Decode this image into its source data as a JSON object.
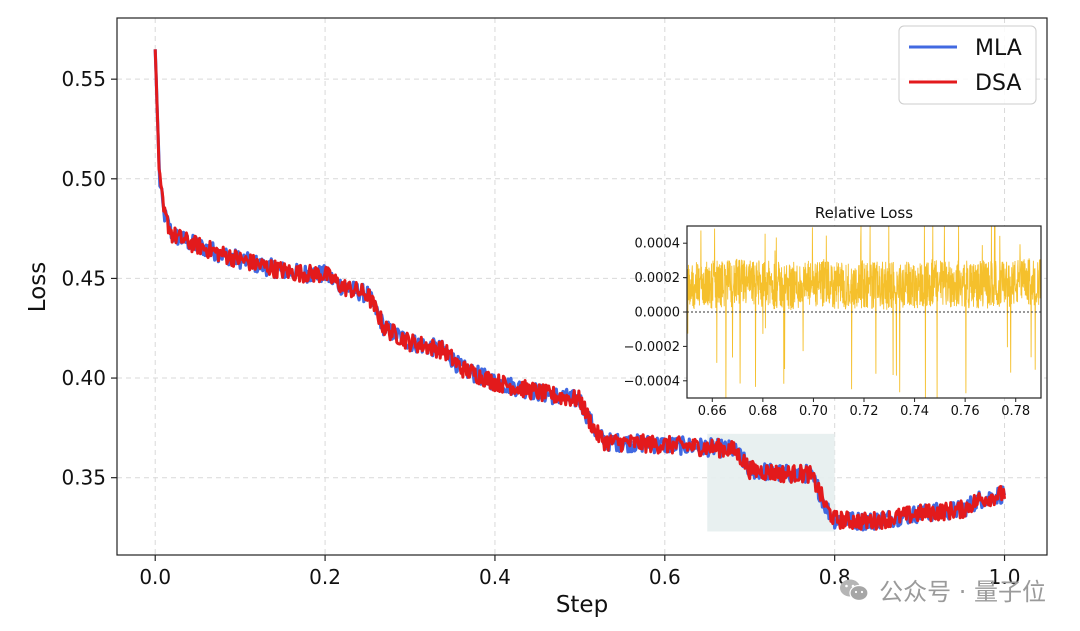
{
  "chart_data": [
    {
      "type": "line",
      "xlabel": "Step",
      "ylabel": "Loss",
      "xlim": [
        -0.045,
        1.05
      ],
      "ylim": [
        0.3112,
        0.5807
      ],
      "xticks": [
        0.0,
        0.2,
        0.4,
        0.6,
        0.8,
        1.0
      ],
      "xtick_labels": [
        "0.0",
        "0.2",
        "0.4",
        "0.6",
        "0.8",
        "1.0"
      ],
      "yticks": [
        0.35,
        0.4,
        0.45,
        0.5,
        0.55
      ],
      "ytick_labels": [
        "0.35",
        "0.40",
        "0.45",
        "0.50",
        "0.55"
      ],
      "grid": true,
      "legend_position": "top-right",
      "series": [
        {
          "name": "MLA",
          "color": "#4169e1",
          "x": [
            0.0,
            0.005,
            0.01,
            0.02,
            0.04,
            0.08,
            0.12,
            0.16,
            0.2,
            0.22,
            0.25,
            0.26,
            0.27,
            0.3,
            0.34,
            0.36,
            0.4,
            0.46,
            0.5,
            0.51,
            0.52,
            0.53,
            0.58,
            0.62,
            0.66,
            0.68,
            0.69,
            0.7,
            0.74,
            0.77,
            0.78,
            0.79,
            0.8,
            0.84,
            0.9,
            0.95,
            0.97,
            1.0
          ],
          "values": [
            0.565,
            0.5,
            0.483,
            0.472,
            0.468,
            0.462,
            0.457,
            0.453,
            0.452,
            0.446,
            0.442,
            0.434,
            0.425,
            0.418,
            0.414,
            0.405,
            0.398,
            0.392,
            0.389,
            0.38,
            0.372,
            0.368,
            0.367,
            0.366,
            0.365,
            0.364,
            0.36,
            0.354,
            0.352,
            0.352,
            0.345,
            0.335,
            0.329,
            0.328,
            0.332,
            0.334,
            0.339,
            0.342
          ]
        },
        {
          "name": "DSA",
          "color": "#e31a1c",
          "x": [
            0.0,
            0.005,
            0.01,
            0.02,
            0.04,
            0.08,
            0.12,
            0.16,
            0.2,
            0.22,
            0.25,
            0.26,
            0.27,
            0.3,
            0.34,
            0.36,
            0.4,
            0.46,
            0.5,
            0.51,
            0.52,
            0.53,
            0.58,
            0.62,
            0.66,
            0.68,
            0.69,
            0.7,
            0.74,
            0.77,
            0.78,
            0.79,
            0.8,
            0.84,
            0.9,
            0.95,
            0.97,
            1.0
          ],
          "values": [
            0.565,
            0.5,
            0.483,
            0.472,
            0.468,
            0.462,
            0.457,
            0.453,
            0.452,
            0.446,
            0.442,
            0.434,
            0.425,
            0.418,
            0.414,
            0.405,
            0.398,
            0.392,
            0.389,
            0.38,
            0.372,
            0.368,
            0.367,
            0.366,
            0.365,
            0.364,
            0.36,
            0.354,
            0.352,
            0.352,
            0.345,
            0.335,
            0.329,
            0.328,
            0.332,
            0.334,
            0.339,
            0.342
          ]
        }
      ],
      "highlight_region": {
        "x": [
          0.65,
          0.8
        ],
        "y": [
          0.323,
          0.372
        ],
        "color": "#e6eeee"
      }
    },
    {
      "type": "line",
      "title": "Relative Loss",
      "xlim": [
        0.65,
        0.79
      ],
      "ylim": [
        -0.0005,
        0.0005
      ],
      "xticks": [
        0.66,
        0.68,
        0.7,
        0.72,
        0.74,
        0.76,
        0.78
      ],
      "xtick_labels": [
        "0.66",
        "0.68",
        "0.70",
        "0.72",
        "0.74",
        "0.76",
        "0.78"
      ],
      "yticks": [
        0.0004,
        0.0002,
        0.0,
        -0.0002,
        -0.0004
      ],
      "ytick_labels": [
        "0.0004",
        "0.0002",
        "0.0000",
        "−0.0002",
        "−0.0004"
      ],
      "reference_line": 0.0,
      "series": [
        {
          "color": "#f5c02c",
          "x": [
            0.65,
            0.66,
            0.67,
            0.68,
            0.69,
            0.7,
            0.71,
            0.72,
            0.73,
            0.74,
            0.75,
            0.76,
            0.77,
            0.78,
            0.79
          ],
          "values": [
            0.00015,
            0.00016,
            0.00017,
            0.00016,
            0.00015,
            0.00016,
            0.00015,
            0.00016,
            0.00015,
            0.00016,
            0.00017,
            0.00016,
            0.00016,
            0.00017,
            0.00018
          ]
        }
      ]
    }
  ],
  "watermark": {
    "text": "公众号 · 量子位",
    "icon": "wechat-icon",
    "color": "#9a9a9a"
  }
}
